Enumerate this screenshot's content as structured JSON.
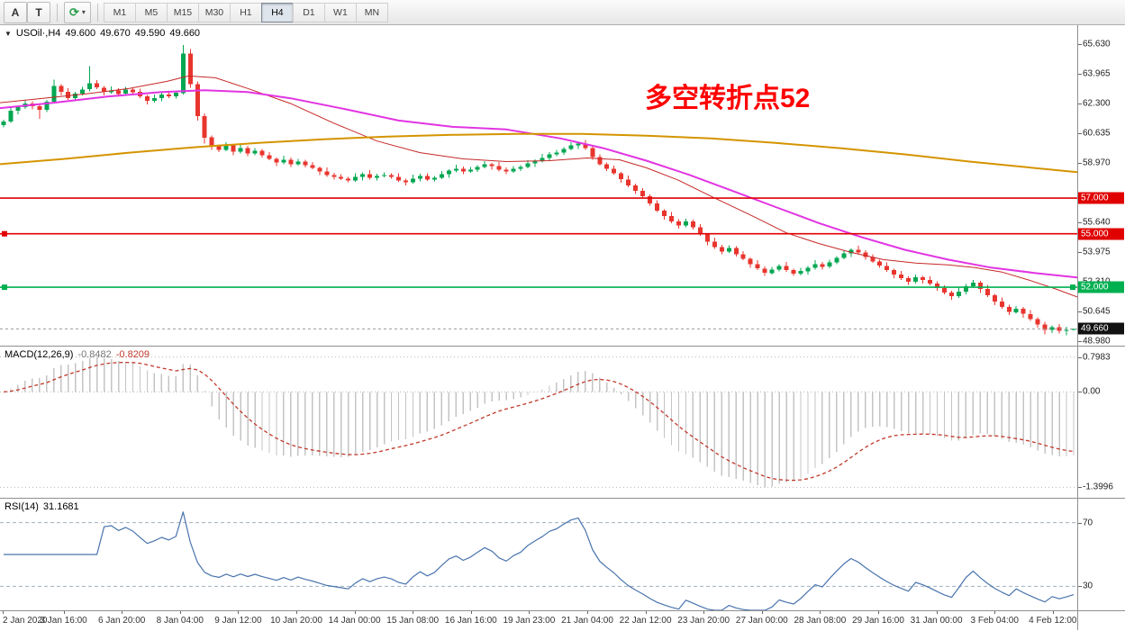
{
  "icons": {
    "symbol_marker": "▼",
    "dropdown_caret": "▾",
    "cycle_glyph": "⟳"
  },
  "toolbar": {
    "buttons": [
      {
        "label": "A"
      },
      {
        "label": "T"
      }
    ],
    "timeframes": [
      {
        "label": "M1",
        "active": false
      },
      {
        "label": "M5",
        "active": false
      },
      {
        "label": "M15",
        "active": false
      },
      {
        "label": "M30",
        "active": false
      },
      {
        "label": "H1",
        "active": false
      },
      {
        "label": "H4",
        "active": true
      },
      {
        "label": "D1",
        "active": false
      },
      {
        "label": "W1",
        "active": false
      },
      {
        "label": "MN",
        "active": false
      }
    ]
  },
  "chart_data": {
    "type": "candlestick",
    "symbol_title": "USOil·,H4",
    "ohlc": {
      "open": "49.600",
      "high": "49.670",
      "low": "49.590",
      "close": "49.660"
    },
    "annotation": {
      "text": "多空转折点52",
      "color": "#ff0000"
    },
    "price_scale": {
      "max": 66.7,
      "min": 48.72
    },
    "up_color": "#00a651",
    "down_color": "#e8352e",
    "current_price": {
      "price": 49.66,
      "label": "49.660",
      "badge_color": "#111111",
      "line_color": "#999999"
    },
    "levels": [
      {
        "price": 57.0,
        "label": "57.000",
        "color": "#e00000",
        "handles": []
      },
      {
        "price": 55.0,
        "label": "55.000",
        "color": "#e00000",
        "handles": [
          "left"
        ]
      },
      {
        "price": 52.0,
        "label": "52.000",
        "color": "#00b050",
        "handles": [
          "left",
          "right"
        ]
      }
    ],
    "price_axis_labels": [
      "65.630",
      "63.965",
      "62.300",
      "60.635",
      "58.970",
      "55.640",
      "53.975",
      "52.310",
      "50.645",
      "48.980"
    ],
    "time_labels": [
      "2 Jan 2020",
      "3 Jan 16:00",
      "6 Jan 20:00",
      "8 Jan 04:00",
      "9 Jan 12:00",
      "10 Jan 20:00",
      "14 Jan 00:00",
      "15 Jan 08:00",
      "16 Jan 16:00",
      "19 Jan 23:00",
      "21 Jan 04:00",
      "22 Jan 12:00",
      "23 Jan 20:00",
      "27 Jan 00:00",
      "28 Jan 08:00",
      "29 Jan 16:00",
      "31 Jan 00:00",
      "3 Feb 04:00",
      "4 Feb 12:00"
    ],
    "moving_averages": [
      {
        "name": "fast-red",
        "color": "#c62828",
        "width": 1,
        "points": [
          [
            0,
            62.35
          ],
          [
            0.04,
            62.6
          ],
          [
            0.08,
            62.85
          ],
          [
            0.12,
            63.15
          ],
          [
            0.155,
            63.55
          ],
          [
            0.175,
            63.85
          ],
          [
            0.2,
            63.75
          ],
          [
            0.23,
            63.15
          ],
          [
            0.27,
            62.3
          ],
          [
            0.31,
            61.2
          ],
          [
            0.35,
            60.2
          ],
          [
            0.39,
            59.55
          ],
          [
            0.43,
            59.2
          ],
          [
            0.47,
            59.05
          ],
          [
            0.51,
            59.1
          ],
          [
            0.545,
            59.25
          ],
          [
            0.575,
            59.15
          ],
          [
            0.6,
            58.7
          ],
          [
            0.63,
            58.0
          ],
          [
            0.66,
            57.1
          ],
          [
            0.7,
            55.95
          ],
          [
            0.73,
            55.05
          ],
          [
            0.76,
            54.45
          ],
          [
            0.79,
            53.95
          ],
          [
            0.82,
            53.55
          ],
          [
            0.85,
            53.35
          ],
          [
            0.88,
            53.25
          ],
          [
            0.905,
            53.1
          ],
          [
            0.93,
            52.85
          ],
          [
            0.955,
            52.4
          ],
          [
            0.98,
            51.9
          ],
          [
            1,
            51.45
          ]
        ]
      },
      {
        "name": "mid-magenta",
        "color": "#e234e2",
        "width": 2,
        "points": [
          [
            0,
            62.05
          ],
          [
            0.05,
            62.35
          ],
          [
            0.1,
            62.7
          ],
          [
            0.15,
            62.95
          ],
          [
            0.19,
            63.05
          ],
          [
            0.23,
            62.95
          ],
          [
            0.27,
            62.6
          ],
          [
            0.32,
            62.0
          ],
          [
            0.37,
            61.35
          ],
          [
            0.42,
            61.0
          ],
          [
            0.47,
            60.85
          ],
          [
            0.52,
            60.35
          ],
          [
            0.56,
            59.8
          ],
          [
            0.6,
            59.1
          ],
          [
            0.64,
            58.3
          ],
          [
            0.68,
            57.4
          ],
          [
            0.72,
            56.5
          ],
          [
            0.76,
            55.6
          ],
          [
            0.8,
            54.8
          ],
          [
            0.84,
            54.1
          ],
          [
            0.88,
            53.55
          ],
          [
            0.92,
            53.1
          ],
          [
            0.96,
            52.8
          ],
          [
            1,
            52.55
          ]
        ]
      },
      {
        "name": "slow-orange",
        "color": "#d49400",
        "width": 2,
        "points": [
          [
            0,
            58.9
          ],
          [
            0.06,
            59.2
          ],
          [
            0.12,
            59.55
          ],
          [
            0.18,
            59.85
          ],
          [
            0.24,
            60.1
          ],
          [
            0.3,
            60.3
          ],
          [
            0.36,
            60.45
          ],
          [
            0.42,
            60.55
          ],
          [
            0.48,
            60.6
          ],
          [
            0.54,
            60.6
          ],
          [
            0.6,
            60.5
          ],
          [
            0.66,
            60.35
          ],
          [
            0.72,
            60.1
          ],
          [
            0.78,
            59.8
          ],
          [
            0.84,
            59.45
          ],
          [
            0.9,
            59.05
          ],
          [
            0.95,
            58.75
          ],
          [
            1,
            58.45
          ]
        ]
      }
    ],
    "macd": {
      "title": "MACD(12,26,9)",
      "value_main": "-0.8482",
      "value_signal": "-0.8209",
      "fast": 12,
      "slow": 26,
      "signal": 9,
      "hist_color": "#c4c4c4",
      "signal_color": "#c0392b",
      "axis_labels": {
        "max": "0.7983",
        "zero": "0.00",
        "min": "-1.3996"
      }
    },
    "rsi": {
      "title": "RSI(14)",
      "value": "31.1681",
      "period": 14,
      "color": "#4a74ad",
      "levels": [
        70,
        30
      ],
      "level_labels": [
        "70",
        "30"
      ],
      "scale": {
        "min": 15,
        "max": 85
      }
    },
    "candles": [
      [
        61.1,
        61.4,
        60.98,
        61.3
      ],
      [
        61.3,
        62.08,
        61.22,
        61.9
      ],
      [
        61.9,
        62.18,
        61.7,
        62.1
      ],
      [
        62.1,
        62.52,
        62.0,
        62.3
      ],
      [
        62.3,
        62.42,
        61.99,
        62.15
      ],
      [
        62.15,
        62.3,
        61.45,
        61.95
      ],
      [
        61.95,
        62.5,
        61.83,
        62.4
      ],
      [
        62.4,
        63.65,
        62.32,
        63.3
      ],
      [
        63.3,
        63.38,
        62.75,
        62.95
      ],
      [
        62.95,
        63.17,
        62.5,
        62.6
      ],
      [
        62.6,
        62.97,
        62.44,
        62.85
      ],
      [
        62.85,
        63.25,
        62.76,
        63.1
      ],
      [
        63.1,
        64.4,
        63.0,
        63.45
      ],
      [
        63.45,
        63.63,
        63.12,
        63.2
      ],
      [
        63.2,
        63.28,
        62.75,
        62.95
      ],
      [
        62.95,
        63.27,
        62.85,
        63.05
      ],
      [
        63.05,
        63.17,
        62.69,
        62.85
      ],
      [
        62.85,
        63.25,
        62.76,
        63.1
      ],
      [
        63.1,
        63.2,
        62.83,
        62.95
      ],
      [
        62.95,
        63.13,
        62.62,
        62.7
      ],
      [
        62.7,
        62.78,
        62.25,
        62.45
      ],
      [
        62.45,
        62.82,
        62.35,
        62.6
      ],
      [
        62.6,
        62.92,
        62.44,
        62.8
      ],
      [
        62.8,
        62.95,
        62.61,
        62.7
      ],
      [
        62.7,
        63.0,
        62.58,
        62.9
      ],
      [
        62.9,
        65.6,
        62.8,
        65.1
      ],
      [
        65.1,
        65.35,
        63.2,
        63.4
      ],
      [
        63.4,
        63.55,
        61.35,
        61.6
      ],
      [
        61.6,
        61.75,
        60.05,
        60.4
      ],
      [
        60.4,
        60.52,
        59.7,
        59.9
      ],
      [
        59.9,
        60.0,
        59.58,
        59.7
      ],
      [
        59.7,
        60.13,
        59.62,
        59.95
      ],
      [
        59.95,
        60.03,
        59.4,
        59.6
      ],
      [
        59.6,
        60.02,
        59.5,
        59.8
      ],
      [
        59.8,
        59.92,
        59.34,
        59.5
      ],
      [
        59.5,
        59.8,
        59.41,
        59.65
      ],
      [
        59.65,
        59.75,
        59.28,
        59.4
      ],
      [
        59.4,
        59.58,
        59.12,
        59.2
      ],
      [
        59.2,
        59.28,
        58.8,
        59.0
      ],
      [
        59.0,
        59.37,
        58.9,
        59.15
      ],
      [
        59.15,
        59.27,
        58.74,
        58.9
      ],
      [
        58.9,
        59.2,
        58.81,
        59.05
      ],
      [
        59.05,
        59.15,
        58.73,
        58.85
      ],
      [
        58.85,
        59.03,
        58.62,
        58.7
      ],
      [
        58.7,
        58.78,
        58.3,
        58.5
      ],
      [
        58.5,
        58.72,
        58.2,
        58.3
      ],
      [
        58.3,
        58.42,
        58.04,
        58.2
      ],
      [
        58.2,
        58.35,
        58.01,
        58.1
      ],
      [
        58.1,
        58.2,
        57.88,
        58.0
      ],
      [
        58.0,
        58.38,
        57.92,
        58.2
      ],
      [
        58.2,
        58.43,
        58.0,
        58.35
      ],
      [
        58.35,
        58.57,
        58.05,
        58.15
      ],
      [
        58.15,
        58.37,
        57.99,
        58.25
      ],
      [
        58.25,
        58.45,
        58.16,
        58.3
      ],
      [
        58.3,
        58.4,
        58.08,
        58.2
      ],
      [
        58.2,
        58.38,
        57.92,
        58.0
      ],
      [
        58.0,
        58.08,
        57.7,
        57.9
      ],
      [
        57.9,
        58.32,
        57.8,
        58.1
      ],
      [
        58.1,
        58.37,
        57.94,
        58.25
      ],
      [
        58.25,
        58.4,
        57.96,
        58.05
      ],
      [
        58.05,
        58.25,
        57.93,
        58.15
      ],
      [
        58.15,
        58.53,
        58.07,
        58.35
      ],
      [
        58.35,
        58.63,
        58.15,
        58.55
      ],
      [
        58.55,
        58.87,
        58.45,
        58.65
      ],
      [
        58.65,
        58.77,
        58.34,
        58.5
      ],
      [
        58.5,
        58.75,
        58.41,
        58.6
      ],
      [
        58.6,
        58.85,
        58.48,
        58.75
      ],
      [
        58.75,
        59.08,
        58.67,
        58.9
      ],
      [
        58.9,
        58.98,
        58.6,
        58.8
      ],
      [
        58.8,
        59.02,
        58.5,
        58.6
      ],
      [
        58.6,
        58.72,
        58.34,
        58.5
      ],
      [
        58.5,
        58.8,
        58.41,
        58.65
      ],
      [
        58.65,
        58.85,
        58.53,
        58.75
      ],
      [
        58.75,
        59.13,
        58.67,
        58.95
      ],
      [
        58.95,
        59.18,
        58.75,
        59.1
      ],
      [
        59.1,
        59.47,
        59.0,
        59.25
      ],
      [
        59.25,
        59.57,
        59.09,
        59.45
      ],
      [
        59.45,
        59.7,
        59.36,
        59.55
      ],
      [
        59.55,
        59.85,
        59.43,
        59.75
      ],
      [
        59.75,
        60.13,
        59.67,
        59.95
      ],
      [
        59.95,
        60.13,
        59.75,
        60.05
      ],
      [
        60.05,
        60.27,
        59.7,
        59.8
      ],
      [
        59.8,
        59.92,
        59.14,
        59.3
      ],
      [
        59.3,
        59.45,
        58.81,
        58.9
      ],
      [
        58.9,
        59.0,
        58.53,
        58.65
      ],
      [
        58.65,
        58.83,
        58.32,
        58.4
      ],
      [
        58.4,
        58.48,
        57.85,
        58.05
      ],
      [
        58.05,
        58.27,
        57.6,
        57.7
      ],
      [
        57.7,
        57.82,
        57.24,
        57.4
      ],
      [
        57.4,
        57.55,
        57.01,
        57.1
      ],
      [
        57.1,
        57.2,
        56.58,
        56.7
      ],
      [
        56.7,
        56.88,
        56.22,
        56.3
      ],
      [
        56.3,
        56.38,
        55.8,
        56.0
      ],
      [
        56.0,
        56.22,
        55.6,
        55.7
      ],
      [
        55.7,
        55.82,
        55.29,
        55.45
      ],
      [
        55.45,
        55.85,
        55.36,
        55.7
      ],
      [
        55.7,
        55.8,
        55.23,
        55.35
      ],
      [
        55.35,
        55.53,
        54.87,
        54.95
      ],
      [
        54.95,
        55.03,
        54.35,
        54.55
      ],
      [
        54.55,
        54.77,
        54.15,
        54.25
      ],
      [
        54.25,
        54.37,
        53.84,
        54.0
      ],
      [
        54.0,
        54.35,
        53.91,
        54.2
      ],
      [
        54.2,
        54.3,
        53.73,
        53.85
      ],
      [
        53.85,
        54.03,
        53.52,
        53.6
      ],
      [
        53.6,
        53.68,
        53.1,
        53.3
      ],
      [
        53.3,
        53.52,
        52.95,
        53.05
      ],
      [
        53.05,
        53.17,
        52.64,
        52.8
      ],
      [
        52.8,
        53.15,
        52.71,
        53.0
      ],
      [
        53.0,
        53.3,
        52.88,
        53.2
      ],
      [
        53.2,
        53.42,
        52.86,
        52.95
      ],
      [
        52.95,
        53.05,
        52.63,
        52.75
      ],
      [
        52.75,
        53.08,
        52.67,
        52.9
      ],
      [
        52.9,
        53.18,
        52.7,
        53.1
      ],
      [
        53.1,
        53.52,
        53.0,
        53.3
      ],
      [
        53.3,
        53.42,
        52.99,
        53.15
      ],
      [
        53.15,
        53.55,
        53.06,
        53.4
      ],
      [
        53.4,
        53.75,
        53.28,
        53.65
      ],
      [
        53.65,
        54.08,
        53.57,
        53.9
      ],
      [
        53.9,
        54.18,
        53.7,
        54.1
      ],
      [
        54.1,
        54.32,
        53.85,
        53.95
      ],
      [
        53.95,
        54.07,
        53.54,
        53.7
      ],
      [
        53.7,
        53.85,
        53.36,
        53.45
      ],
      [
        53.45,
        53.55,
        53.08,
        53.2
      ],
      [
        53.2,
        53.38,
        52.87,
        52.95
      ],
      [
        52.95,
        53.03,
        52.5,
        52.7
      ],
      [
        52.7,
        52.92,
        52.4,
        52.5
      ],
      [
        52.5,
        52.62,
        52.14,
        52.3
      ],
      [
        52.3,
        52.7,
        52.21,
        52.55
      ],
      [
        52.55,
        52.63,
        52.2,
        52.4
      ],
      [
        52.4,
        52.62,
        52.1,
        52.2
      ],
      [
        52.2,
        52.32,
        51.79,
        51.95
      ],
      [
        51.95,
        52.1,
        51.61,
        51.7
      ],
      [
        51.7,
        51.8,
        51.3,
        51.5
      ],
      [
        51.5,
        51.97,
        51.4,
        51.75
      ],
      [
        51.75,
        52.17,
        51.59,
        52.05
      ],
      [
        52.05,
        52.4,
        51.96,
        52.25
      ],
      [
        52.25,
        52.35,
        51.68,
        51.9
      ],
      [
        51.9,
        52.12,
        51.45,
        51.55
      ],
      [
        51.55,
        51.63,
        51.0,
        51.2
      ],
      [
        51.2,
        51.42,
        50.8,
        50.9
      ],
      [
        50.9,
        51.02,
        50.44,
        50.6
      ],
      [
        50.6,
        50.95,
        50.51,
        50.8
      ],
      [
        50.8,
        50.9,
        50.28,
        50.5
      ],
      [
        50.5,
        50.72,
        50.1,
        50.2
      ],
      [
        50.2,
        50.32,
        49.74,
        49.9
      ],
      [
        49.9,
        50.05,
        49.35,
        49.6
      ],
      [
        49.6,
        49.85,
        49.42,
        49.75
      ],
      [
        49.75,
        49.93,
        49.4,
        49.55
      ],
      [
        49.55,
        49.78,
        49.3,
        49.6
      ],
      [
        49.6,
        49.67,
        49.59,
        49.66
      ]
    ]
  }
}
